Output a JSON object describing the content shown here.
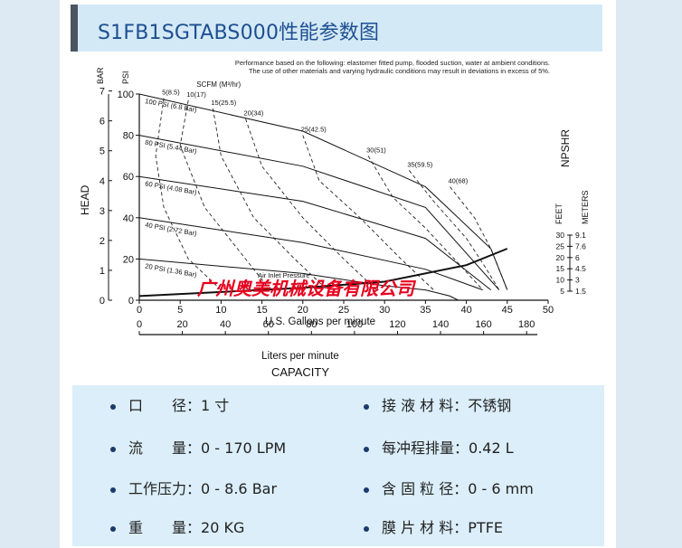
{
  "page": {
    "title": "S1FB1SGTABS000性能参数图",
    "note_line1": "Performance based on the following: elastomer fitted pump, flooded suction, water at ambient conditions.",
    "note_line2": "The use of other materials and varying hydraulic conditions may result in deviations in excess of 5%.",
    "watermark": "广州奥美机械设备有限公司",
    "colors": {
      "title": "#1d4f91",
      "watermark": "#e8001e",
      "panel": "#dbeef9",
      "title_bar": "#d4e9f6"
    }
  },
  "chart_data": {
    "type": "line",
    "title": "",
    "xlabel": "U.S. Gallons per minute",
    "x2label": "Liters per minute",
    "bottom_label": "CAPACITY",
    "ylabel": "HEAD",
    "y_unit_bar": "BAR",
    "y_unit_psi": "PSI",
    "right_label": "NPSHR",
    "right_unit_feet": "FEET",
    "right_unit_meters": "METERS",
    "scfm_label": "SCFM (M³/hr)",
    "xlim": [
      0,
      50
    ],
    "ylim": [
      0,
      100
    ],
    "x_ticks": [
      "0",
      "5",
      "10",
      "15",
      "20",
      "25",
      "30",
      "35",
      "40",
      "45",
      "50"
    ],
    "lpm_ticks": [
      "0",
      "20",
      "40",
      "60",
      "80",
      "100",
      "120",
      "140",
      "160",
      "180"
    ],
    "psi_ticks": [
      "0",
      "20",
      "40",
      "60",
      "80",
      "100"
    ],
    "bar_ticks": [
      "0",
      "1",
      "2",
      "3",
      "4",
      "5",
      "6",
      "7"
    ],
    "npshr_feet_ticks": [
      "5",
      "10",
      "15",
      "20",
      "25",
      "30"
    ],
    "npshr_meter_ticks": [
      "1.5",
      "3",
      "4.5",
      "6",
      "7.6",
      "9.1"
    ],
    "series": [
      {
        "name": "100 PSI (6.8 Bar)",
        "points": [
          [
            0,
            100
          ],
          [
            20,
            82
          ],
          [
            35,
            55
          ],
          [
            43,
            25
          ],
          [
            45,
            5
          ]
        ]
      },
      {
        "name": "80 PSI (5.44 Bar)",
        "points": [
          [
            0,
            80
          ],
          [
            20,
            65
          ],
          [
            35,
            45
          ],
          [
            44,
            5
          ]
        ]
      },
      {
        "name": "60 PSI (4.08 Bar)",
        "points": [
          [
            0,
            60
          ],
          [
            20,
            48
          ],
          [
            35,
            30
          ],
          [
            43,
            5
          ]
        ]
      },
      {
        "name": "40 PSI (2.72 Bar)",
        "points": [
          [
            0,
            40
          ],
          [
            20,
            28
          ],
          [
            35,
            15
          ],
          [
            42,
            5
          ]
        ]
      },
      {
        "name": "20 PSI (1.36 Bar)",
        "points": [
          [
            0,
            20
          ],
          [
            20,
            13
          ],
          [
            30,
            7
          ],
          [
            35,
            5
          ],
          [
            38,
            2
          ],
          [
            39,
            0
          ]
        ]
      }
    ],
    "npshr_curve": {
      "name": "Air Inlet Pressure",
      "points": [
        [
          0,
          2
        ],
        [
          20,
          6
        ],
        [
          30,
          9
        ],
        [
          40,
          17
        ],
        [
          45,
          25
        ]
      ]
    },
    "air_consumption": [
      {
        "label": "5(8.5)",
        "points": [
          [
            3,
            98
          ],
          [
            2,
            70
          ],
          [
            3,
            45
          ],
          [
            6,
            20
          ],
          [
            10,
            5
          ]
        ]
      },
      {
        "label": "10(17)",
        "points": [
          [
            6,
            97
          ],
          [
            5,
            75
          ],
          [
            8,
            45
          ],
          [
            13,
            20
          ],
          [
            16,
            5
          ]
        ]
      },
      {
        "label": "15(25.5)",
        "points": [
          [
            9,
            93
          ],
          [
            10,
            70
          ],
          [
            14,
            40
          ],
          [
            19,
            20
          ],
          [
            23,
            5
          ]
        ]
      },
      {
        "label": "20(34)",
        "points": [
          [
            13,
            88
          ],
          [
            15,
            65
          ],
          [
            20,
            40
          ],
          [
            25,
            20
          ],
          [
            29,
            5
          ]
        ]
      },
      {
        "label": "25(42.5)",
        "points": [
          [
            20,
            80
          ],
          [
            22,
            58
          ],
          [
            27,
            40
          ],
          [
            32,
            20
          ],
          [
            36,
            5
          ]
        ]
      },
      {
        "label": "30(51)",
        "points": [
          [
            28,
            70
          ],
          [
            31,
            50
          ],
          [
            35,
            35
          ],
          [
            39,
            18
          ],
          [
            42,
            5
          ]
        ]
      },
      {
        "label": "35(59.5)",
        "points": [
          [
            33,
            63
          ],
          [
            36,
            48
          ],
          [
            40,
            30
          ],
          [
            42,
            18
          ],
          [
            44,
            5
          ]
        ]
      },
      {
        "label": "40(68)",
        "points": [
          [
            38,
            55
          ],
          [
            41,
            40
          ],
          [
            43,
            25
          ],
          [
            45,
            5
          ]
        ]
      }
    ]
  },
  "specs": [
    {
      "label": "口　　径",
      "sep": "：",
      "value": "1 寸"
    },
    {
      "label": "接 液 材 料",
      "sep": "：",
      "value": "不锈钢"
    },
    {
      "label": "流　　量",
      "sep": "：",
      "value": "0 - 170 LPM"
    },
    {
      "label": "每冲程排量",
      "sep": "：",
      "value": "0.42 L"
    },
    {
      "label": "工作压力",
      "sep": "：",
      "value": "0 - 8.6 Bar"
    },
    {
      "label": "含 固 粒 径",
      "sep": "：",
      "value": "0 - 6 mm"
    },
    {
      "label": "重　　量",
      "sep": "：",
      "value": "20 KG"
    },
    {
      "label": "膜 片 材 料",
      "sep": "：",
      "value": "PTFE"
    }
  ]
}
